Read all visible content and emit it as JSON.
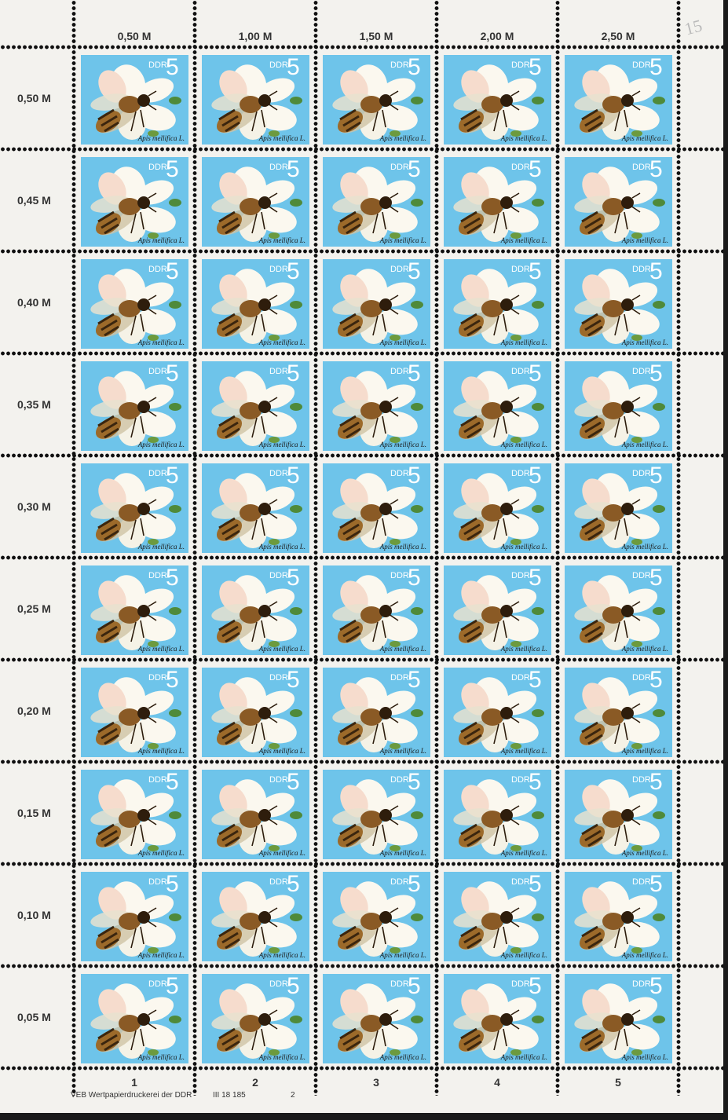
{
  "sheet": {
    "column_values": [
      "0,50 M",
      "1,00 M",
      "1,50 M",
      "2,00 M",
      "2,50 M"
    ],
    "row_values": [
      "0,50 M",
      "0,45 M",
      "0,40 M",
      "0,35 M",
      "0,30 M",
      "0,25 M",
      "0,20 M",
      "0,15 M",
      "0,10 M",
      "0,05 M"
    ],
    "column_numbers": [
      "1",
      "2",
      "3",
      "4",
      "5"
    ],
    "pencil_mark": "15"
  },
  "stamp": {
    "country": "DDR",
    "denomination": "5",
    "species": "Apis mellifica L.",
    "background_color": "#6ec4ea"
  },
  "imprint": {
    "printer": "VEB Wertpapierdruckerei der DDR",
    "code": "III 18 185",
    "number": "2"
  }
}
